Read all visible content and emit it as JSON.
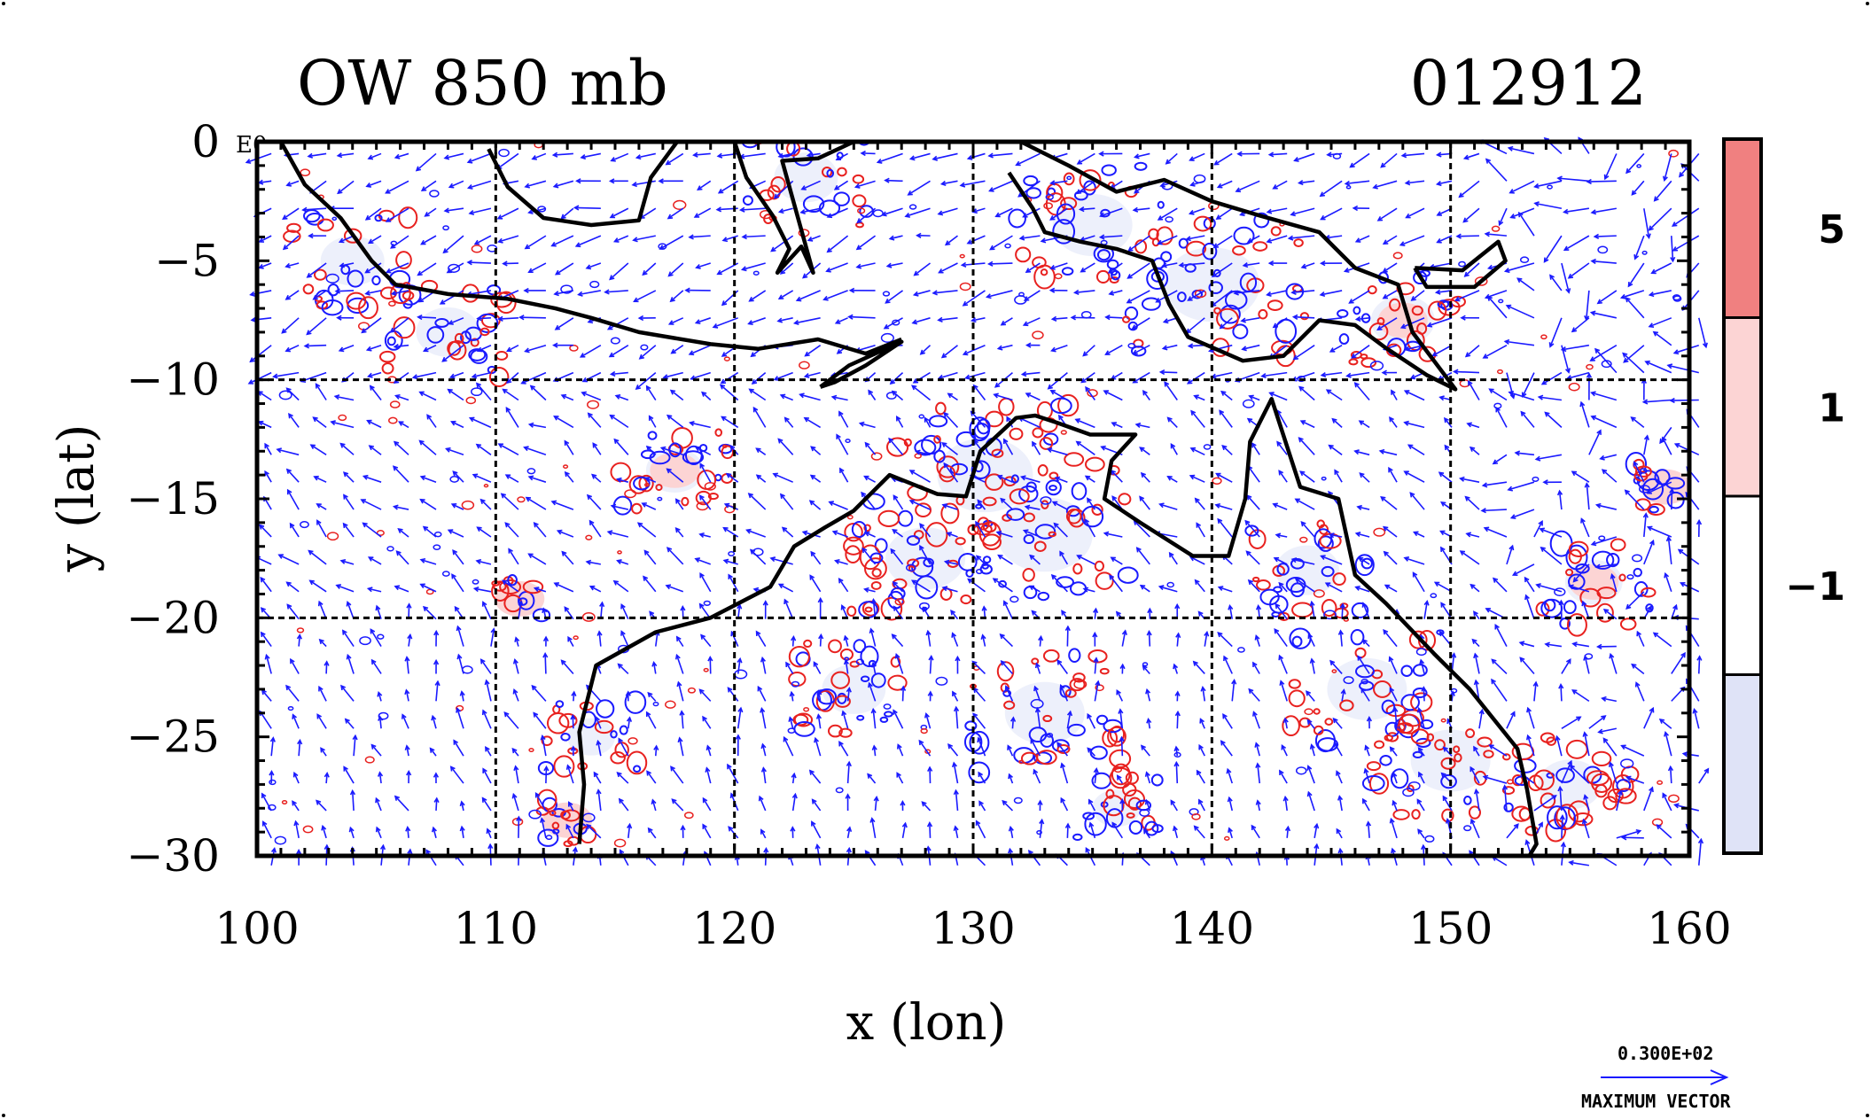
{
  "chart_data": {
    "type": "vector-contour-map",
    "title": "OW 850 mb",
    "date_label": "012912",
    "xlabel": "x (lon)",
    "ylabel": "y (lat)",
    "xlim": [
      100,
      160
    ],
    "ylim": [
      -30,
      0
    ],
    "xticks": [
      100,
      110,
      120,
      130,
      140,
      150,
      160
    ],
    "yticks": [
      0,
      -5,
      -10,
      -15,
      -20,
      -25,
      -30
    ],
    "ytick_labels": [
      "0",
      "−5",
      "−10",
      "−15",
      "−20",
      "−25",
      "−30"
    ],
    "corner_label": "E0",
    "grid": true,
    "colorbar": {
      "levels": [
        5,
        1,
        -1
      ],
      "level_labels": [
        "5",
        "1",
        "−1"
      ],
      "bands": [
        {
          "range": "above 5",
          "color": "#f08080"
        },
        {
          "range": "1 to 5",
          "color": "#fcd4d4"
        },
        {
          "range": "-1 to 1",
          "color": "#ffffff"
        },
        {
          "range": "below -1",
          "color": "#dfe3f7"
        }
      ]
    },
    "vector_legend": {
      "value_label": "0.300E+02",
      "caption": "MAXIMUM VECTOR",
      "color": "#1a1aff"
    },
    "positive_contour_color": "#e8211f",
    "negative_contour_color": "#1a1aff",
    "coast_color": "#000000",
    "coastlines": [
      {
        "name": "sumatra-java",
        "points": [
          [
            101,
            0
          ],
          [
            102,
            -1.8
          ],
          [
            103.5,
            -3.2
          ],
          [
            104.8,
            -5
          ],
          [
            105.8,
            -6
          ],
          [
            108,
            -6.4
          ],
          [
            110.5,
            -6.6
          ],
          [
            112.5,
            -7
          ],
          [
            114,
            -7.4
          ],
          [
            116,
            -8
          ],
          [
            119,
            -8.5
          ],
          [
            121,
            -8.7
          ],
          [
            123.5,
            -8.3
          ],
          [
            125.5,
            -8.9
          ],
          [
            127,
            -8.3
          ]
        ]
      },
      {
        "name": "borneo-south",
        "points": [
          [
            109.7,
            -0.3
          ],
          [
            110.5,
            -1.9
          ],
          [
            112,
            -3.2
          ],
          [
            114,
            -3.5
          ],
          [
            116,
            -3.3
          ],
          [
            116.5,
            -1.5
          ],
          [
            117.6,
            0
          ]
        ]
      },
      {
        "name": "sulawesi",
        "points": [
          [
            120,
            0
          ],
          [
            120.5,
            -1.5
          ],
          [
            121.6,
            -3.1
          ],
          [
            122.3,
            -4.5
          ],
          [
            121.8,
            -5.5
          ],
          [
            122.8,
            -4.4
          ],
          [
            123.3,
            -5.5
          ],
          [
            122,
            -0.8
          ],
          [
            123.5,
            -0.7
          ],
          [
            125,
            0
          ]
        ]
      },
      {
        "name": "timor",
        "points": [
          [
            123.6,
            -10.3
          ],
          [
            124.8,
            -9.4
          ],
          [
            127,
            -8.4
          ],
          [
            125.5,
            -9.4
          ],
          [
            124.2,
            -10.1
          ],
          [
            123.6,
            -10.3
          ]
        ]
      },
      {
        "name": "new-guinea",
        "points": [
          [
            132,
            0
          ],
          [
            134,
            -1
          ],
          [
            136,
            -2.1
          ],
          [
            138,
            -1.6
          ],
          [
            140,
            -2.5
          ],
          [
            142,
            -3.1
          ],
          [
            144.5,
            -3.8
          ],
          [
            146,
            -5.3
          ],
          [
            147.8,
            -6
          ],
          [
            148.4,
            -8
          ],
          [
            150.2,
            -10.4
          ],
          [
            149,
            -9.8
          ],
          [
            147.2,
            -8.6
          ],
          [
            146,
            -7.7
          ],
          [
            144.5,
            -7.5
          ],
          [
            143,
            -9
          ],
          [
            141.3,
            -9.2
          ],
          [
            139,
            -8.2
          ],
          [
            138.2,
            -6.8
          ],
          [
            137.5,
            -5
          ],
          [
            136,
            -4.5
          ],
          [
            134.5,
            -4.2
          ],
          [
            133,
            -3.8
          ],
          [
            132.5,
            -2.8
          ],
          [
            131.5,
            -1.3
          ]
        ]
      },
      {
        "name": "new-britain",
        "points": [
          [
            148.5,
            -5.3
          ],
          [
            150.5,
            -5.4
          ],
          [
            152,
            -4.2
          ],
          [
            152.3,
            -5
          ],
          [
            151,
            -6.1
          ],
          [
            149,
            -6.1
          ],
          [
            148.5,
            -5.3
          ]
        ]
      },
      {
        "name": "australia",
        "points": [
          [
            113.5,
            -29.5
          ],
          [
            113.7,
            -27
          ],
          [
            113.5,
            -24.8
          ],
          [
            114.2,
            -22
          ],
          [
            116.7,
            -20.6
          ],
          [
            119,
            -20
          ],
          [
            121.5,
            -18.7
          ],
          [
            122.5,
            -17
          ],
          [
            123.8,
            -16.2
          ],
          [
            125,
            -15.5
          ],
          [
            126.5,
            -14
          ],
          [
            128.5,
            -14.8
          ],
          [
            129.7,
            -14.9
          ],
          [
            130.3,
            -13
          ],
          [
            131.8,
            -11.6
          ],
          [
            132.6,
            -11.5
          ],
          [
            133.5,
            -11.8
          ],
          [
            134.9,
            -12.3
          ],
          [
            136.8,
            -12.3
          ],
          [
            135.8,
            -13.4
          ],
          [
            135.5,
            -15
          ],
          [
            137,
            -16
          ],
          [
            139.2,
            -17.4
          ],
          [
            140.7,
            -17.4
          ],
          [
            141.4,
            -15
          ],
          [
            141.6,
            -12.6
          ],
          [
            142.5,
            -10.8
          ],
          [
            143.7,
            -14.5
          ],
          [
            145.3,
            -15
          ],
          [
            146,
            -18.2
          ],
          [
            147.3,
            -19.4
          ],
          [
            149.3,
            -21.5
          ],
          [
            150.8,
            -23
          ],
          [
            152.8,
            -25.5
          ],
          [
            153.2,
            -27.2
          ],
          [
            153.6,
            -29.5
          ],
          [
            153.3,
            -30
          ]
        ]
      }
    ],
    "pressure_level_mb": 850
  }
}
